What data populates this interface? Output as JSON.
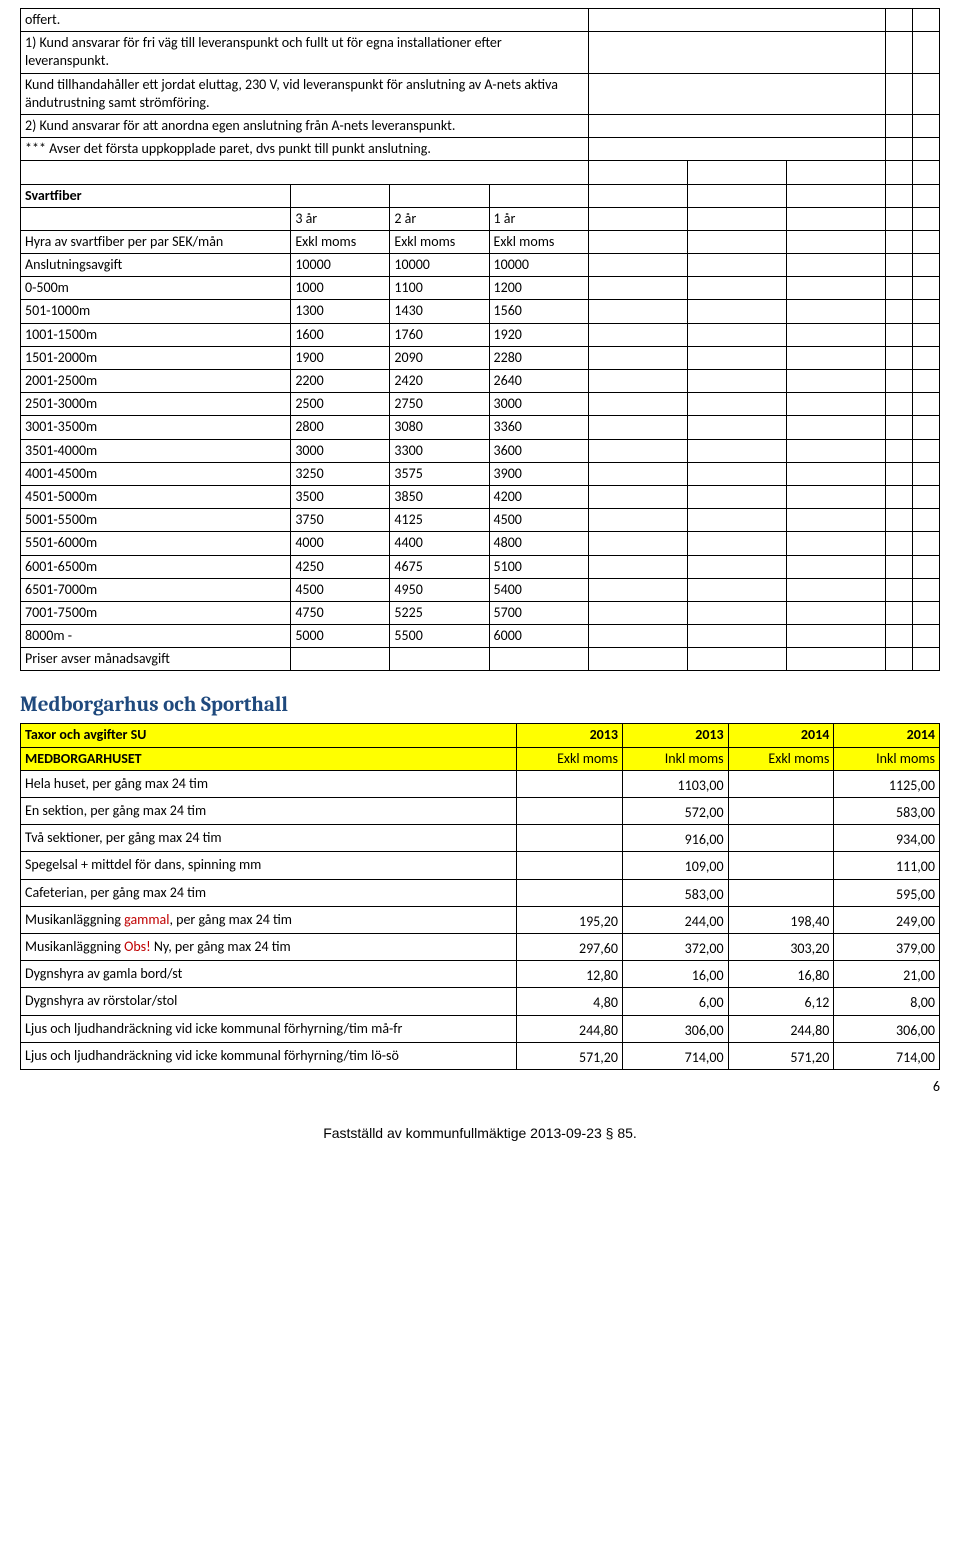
{
  "intro": {
    "rows": [
      "offert.",
      "1) Kund ansvarar för fri väg till leveranspunkt och fullt ut för egna installationer efter leveranspunkt.",
      "Kund tillhandahåller ett jordat eluttag, 230 V, vid leveranspunkt för anslutning av A-nets aktiva ändutrustning samt strömföring.",
      "2) Kund ansvarar för att anordna egen anslutning från A-nets leveranspunkt.",
      "*** Avser det första uppkopplade paret, dvs punkt till punkt anslutning."
    ]
  },
  "svartfiber": {
    "title": "Svartfiber",
    "year_labels": [
      "3 år",
      "2 år",
      "1 år"
    ],
    "subhead_row": [
      "Hyra av svartfiber per par SEK/mån",
      "Exkl moms",
      "Exkl moms",
      "Exkl moms"
    ],
    "rows": [
      [
        "Anslutningsavgift",
        "10000",
        "10000",
        "10000"
      ],
      [
        "0-500m",
        "1000",
        "1100",
        "1200"
      ],
      [
        "501-1000m",
        "1300",
        "1430",
        "1560"
      ],
      [
        "1001-1500m",
        "1600",
        "1760",
        "1920"
      ],
      [
        "1501-2000m",
        "1900",
        "2090",
        "2280"
      ],
      [
        "2001-2500m",
        "2200",
        "2420",
        "2640"
      ],
      [
        "2501-3000m",
        "2500",
        "2750",
        "3000"
      ],
      [
        "3001-3500m",
        "2800",
        "3080",
        "3360"
      ],
      [
        "3501-4000m",
        "3000",
        "3300",
        "3600"
      ],
      [
        "4001-4500m",
        "3250",
        "3575",
        "3900"
      ],
      [
        "4501-5000m",
        "3500",
        "3850",
        "4200"
      ],
      [
        "5001-5500m",
        "3750",
        "4125",
        "4500"
      ],
      [
        "5501-6000m",
        "4000",
        "4400",
        "4800"
      ],
      [
        "6001-6500m",
        "4250",
        "4675",
        "5100"
      ],
      [
        "6501-7000m",
        "4500",
        "4950",
        "5400"
      ],
      [
        "7001-7500m",
        "4750",
        "5225",
        "5700"
      ],
      [
        "8000m -",
        "5000",
        "5500",
        "6000"
      ]
    ],
    "footer_row": "Priser avser månadsavgift"
  },
  "sporthall": {
    "heading": "Medborgarhus och Sporthall",
    "header_row": [
      "Taxor och avgifter SU",
      "2013",
      "2013",
      "2014",
      "2014"
    ],
    "subheader_row": [
      "MEDBORGARHUSET",
      "Exkl moms",
      "Inkl moms",
      "Exkl moms",
      "Inkl moms"
    ],
    "rows": [
      {
        "label": "Hela huset, per gång max 24 tim",
        "v": [
          "",
          "1103,00",
          "",
          "1125,00"
        ]
      },
      {
        "label": "En sektion, per gång max 24 tim",
        "v": [
          "",
          "572,00",
          "",
          "583,00"
        ]
      },
      {
        "label": "Två sektioner, per gång max 24 tim",
        "v": [
          "",
          "916,00",
          "",
          "934,00"
        ]
      },
      {
        "label": "Spegelsal + mittdel för dans, spinning mm",
        "v": [
          "",
          "109,00",
          "",
          "111,00"
        ]
      },
      {
        "label": "Cafeterian, per gång max 24 tim",
        "v": [
          "",
          "583,00",
          "",
          "595,00"
        ]
      },
      {
        "label_html": "Musikanläggning <span class='red'>gammal</span>, per gång max 24 tim",
        "v": [
          "195,20",
          "244,00",
          "198,40",
          "249,00"
        ]
      },
      {
        "label_html": "Musikanläggning <span class='red'>Obs!</span> Ny, per gång max 24 tim",
        "v": [
          "297,60",
          "372,00",
          "303,20",
          "379,00"
        ]
      },
      {
        "label": "Dygnshyra av gamla bord/st",
        "v": [
          "12,80",
          "16,00",
          "16,80",
          "21,00"
        ]
      },
      {
        "label": "Dygnshyra av rörstolar/stol",
        "v": [
          "4,80",
          "6,00",
          "6,12",
          "8,00"
        ]
      },
      {
        "label": "Ljus och ljudhandräckning vid icke kommunal förhyrning/tim må-fr",
        "v": [
          "244,80",
          "306,00",
          "244,80",
          "306,00"
        ]
      },
      {
        "label": "Ljus och ljudhandräckning vid icke kommunal förhyrning/tim lö-sö",
        "v": [
          "571,20",
          "714,00",
          "571,20",
          "714,00"
        ]
      }
    ]
  },
  "footer": "Fastställd av kommunfullmäktige 2013-09-23 § 85.",
  "page_number": "6"
}
